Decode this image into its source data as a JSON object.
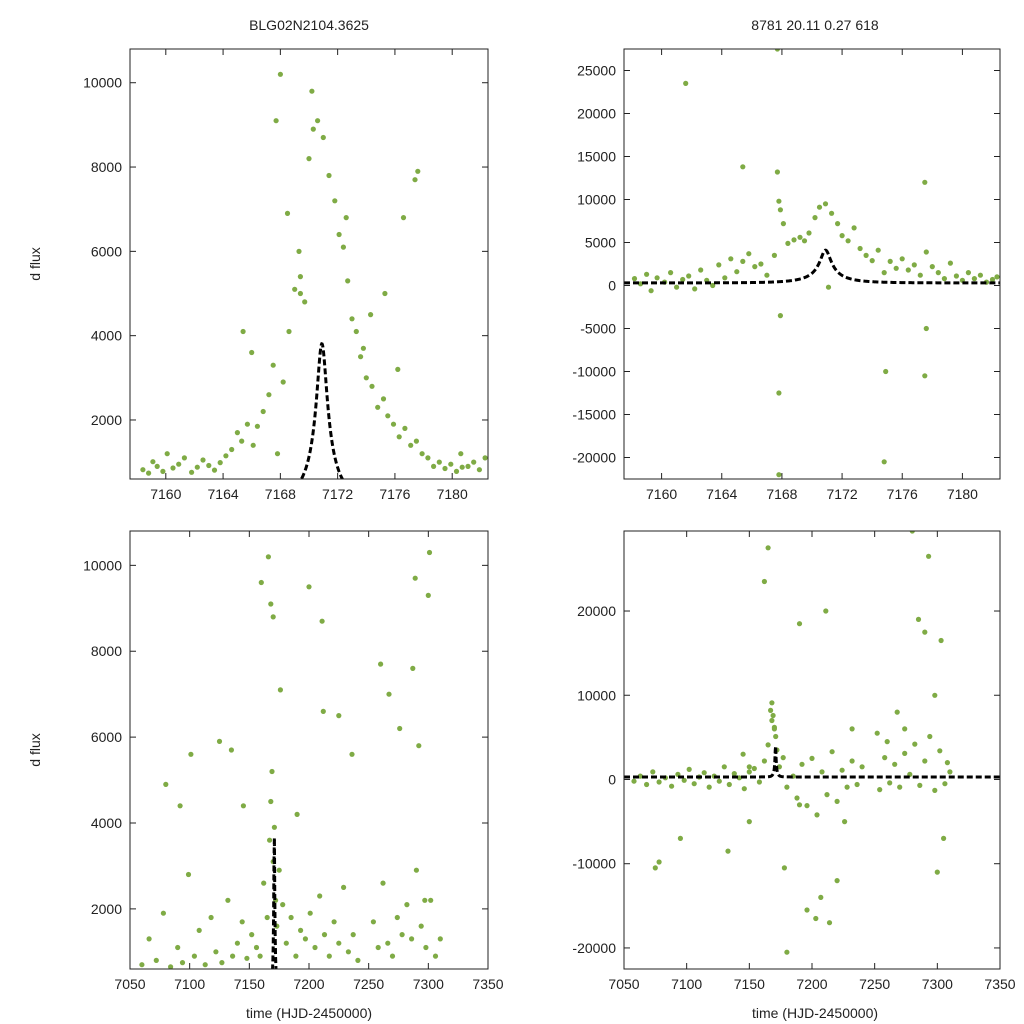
{
  "figure": {
    "title_left": "BLG02N2104.3625",
    "title_right": "8781  20.11  0.27  618",
    "ylabel": "d flux",
    "xlabel": "time (HJD-2450000)"
  },
  "colors": {
    "points": "#7fab45",
    "model": "#000000",
    "axes": "#222222",
    "background": "#ffffff"
  },
  "chart_data": [
    {
      "id": "top-left",
      "type": "scatter",
      "title": "BLG02N2104.3625",
      "xlabel": "",
      "ylabel": "d flux",
      "xlim": [
        7157.5,
        7182.5
      ],
      "ylim": [
        600,
        10800
      ],
      "xticks": [
        7160,
        7164,
        7168,
        7172,
        7176,
        7180
      ],
      "yticks": [
        2000,
        4000,
        6000,
        8000,
        10000
      ],
      "model": {
        "t0": 7170.9,
        "tE": 2.55,
        "u0": 0.145,
        "fs": 640,
        "fb": 0
      },
      "series": [
        {
          "name": "observations",
          "x": [
            7158.4,
            7158.8,
            7159.1,
            7159.4,
            7159.8,
            7160.1,
            7160.5,
            7160.9,
            7161.3,
            7161.8,
            7162.2,
            7162.6,
            7163.0,
            7163.4,
            7163.8,
            7164.2,
            7164.6,
            7165.0,
            7165.3,
            7165.7,
            7166.1,
            7166.4,
            7166.8,
            7167.2,
            7167.5,
            7167.8,
            7168.2,
            7168.6,
            7169.0,
            7169.4,
            7169.7,
            7170.0,
            7170.3,
            7170.6,
            7171.0,
            7171.4,
            7171.8,
            7172.1,
            7172.4,
            7172.7,
            7173.0,
            7173.3,
            7173.6,
            7174.0,
            7174.4,
            7174.8,
            7175.2,
            7175.5,
            7175.9,
            7176.3,
            7176.7,
            7177.1,
            7177.5,
            7177.9,
            7178.3,
            7178.7,
            7179.1,
            7179.5,
            7179.9,
            7180.3,
            7180.7,
            7181.1,
            7181.5,
            7181.9,
            7182.3,
            7167.7,
            7168.0,
            7169.3,
            7169.4,
            7170.2,
            7172.6,
            7174.3,
            7175.3,
            7176.6,
            7177.4,
            7177.6,
            7165.4,
            7166.0,
            7168.5,
            7173.8,
            7176.2,
            7180.6
          ],
          "y": [
            820,
            740,
            1010,
            900,
            780,
            1200,
            860,
            950,
            1100,
            760,
            880,
            1050,
            920,
            810,
            990,
            1150,
            1300,
            1700,
            1500,
            1900,
            1400,
            1850,
            2200,
            2600,
            3300,
            1200,
            2900,
            4100,
            5100,
            5400,
            4800,
            8200,
            8900,
            9100,
            8700,
            7800,
            7200,
            6400,
            6100,
            5300,
            4400,
            4100,
            3500,
            3000,
            2800,
            2300,
            2500,
            2100,
            1900,
            1600,
            1800,
            1400,
            1500,
            1200,
            1100,
            900,
            1000,
            850,
            950,
            780,
            880,
            900,
            1000,
            820,
            1100,
            9100,
            10200,
            6000,
            5000,
            9800,
            6800,
            4500,
            5000,
            6800,
            7700,
            7900,
            4100,
            3600,
            6900,
            3700,
            3200,
            1200
          ]
        }
      ]
    },
    {
      "id": "top-right",
      "type": "scatter",
      "title": "8781  20.11  0.27  618",
      "xlabel": "",
      "ylabel": "",
      "xlim": [
        7157.5,
        7182.5
      ],
      "ylim": [
        -22500,
        27500
      ],
      "xticks": [
        7160,
        7164,
        7168,
        7172,
        7176,
        7180
      ],
      "yticks": [
        -20000,
        -15000,
        -10000,
        -5000,
        0,
        5000,
        10000,
        15000,
        20000,
        25000
      ],
      "model": {
        "t0": 7170.9,
        "tE": 2.55,
        "u0": 0.145,
        "fs": 640,
        "fb": 300
      },
      "series": [
        {
          "name": "observations",
          "x": [
            7158.2,
            7158.6,
            7159.0,
            7159.3,
            7159.7,
            7160.2,
            7160.6,
            7161.0,
            7161.4,
            7161.8,
            7162.2,
            7162.6,
            7163.0,
            7163.4,
            7163.8,
            7164.2,
            7164.6,
            7165.0,
            7165.4,
            7165.8,
            7166.2,
            7166.6,
            7167.0,
            7167.5,
            7167.8,
            7168.1,
            7168.4,
            7168.8,
            7169.2,
            7169.5,
            7169.8,
            7170.2,
            7170.5,
            7170.9,
            7171.3,
            7171.7,
            7172.0,
            7172.4,
            7172.8,
            7173.2,
            7173.6,
            7174.0,
            7174.4,
            7174.8,
            7175.2,
            7175.6,
            7176.0,
            7176.4,
            7176.8,
            7177.2,
            7177.6,
            7178.0,
            7178.4,
            7178.8,
            7179.2,
            7179.6,
            7180.0,
            7180.4,
            7180.8,
            7181.2,
            7181.6,
            7182.0,
            7182.3,
            7161.6,
            7165.4,
            7167.7,
            7167.8,
            7167.9,
            7167.7,
            7167.8,
            7174.9,
            7174.8,
            7177.5,
            7177.5,
            7177.6,
            7171.1,
            7167.9
          ],
          "y": [
            800,
            200,
            1300,
            -600,
            900,
            400,
            1500,
            -200,
            700,
            1100,
            -400,
            1800,
            600,
            0,
            2400,
            900,
            3100,
            1600,
            2800,
            3700,
            2200,
            2500,
            1200,
            3500,
            9800,
            7200,
            4900,
            5300,
            5600,
            5200,
            6100,
            7900,
            9100,
            9500,
            8400,
            7200,
            5800,
            5200,
            6700,
            4300,
            3500,
            2900,
            4100,
            1500,
            2800,
            2000,
            3100,
            1800,
            2400,
            1200,
            3900,
            2200,
            1500,
            800,
            2600,
            1100,
            600,
            1500,
            800,
            1200,
            400,
            700,
            1000,
            23500,
            13800,
            13200,
            -12500,
            -3500,
            27500,
            -22000,
            -10000,
            -20500,
            -10500,
            12000,
            -5000,
            -200,
            8800
          ]
        }
      ]
    },
    {
      "id": "bottom-left",
      "type": "scatter",
      "title": "",
      "xlabel": "time (HJD-2450000)",
      "ylabel": "d flux",
      "xlim": [
        7050,
        7350
      ],
      "ylim": [
        600,
        10800
      ],
      "xticks": [
        7050,
        7100,
        7150,
        7200,
        7250,
        7300,
        7350
      ],
      "yticks": [
        2000,
        4000,
        6000,
        8000,
        10000
      ],
      "model": {
        "t0": 7170.9,
        "tE": 2.55,
        "u0": 0.145,
        "fs": 640,
        "fb": 0
      },
      "series": [
        {
          "name": "observations",
          "x": [
            7060,
            7066,
            7072,
            7078,
            7084,
            7090,
            7094,
            7099,
            7104,
            7108,
            7113,
            7118,
            7122,
            7127,
            7132,
            7136,
            7140,
            7144,
            7148,
            7152,
            7156,
            7159,
            7162,
            7165,
            7167,
            7168,
            7169,
            7170,
            7171,
            7172,
            7173,
            7175,
            7178,
            7181,
            7185,
            7189,
            7193,
            7197,
            7201,
            7205,
            7209,
            7213,
            7217,
            7221,
            7225,
            7229,
            7233,
            7237,
            7241,
            7254,
            7258,
            7262,
            7266,
            7270,
            7274,
            7278,
            7282,
            7286,
            7290,
            7294,
            7298,
            7302,
            7306,
            7310,
            7080,
            7092,
            7101,
            7125,
            7135,
            7145,
            7168,
            7170,
            7176,
            7190,
            7200,
            7211,
            7225,
            7236,
            7260,
            7267,
            7276,
            7287,
            7289,
            7292,
            7297,
            7301,
            7166,
            7212,
            7160,
            7300
          ],
          "y": [
            700,
            1300,
            800,
            1900,
            650,
            1100,
            750,
            2800,
            900,
            1500,
            700,
            1800,
            1000,
            750,
            2200,
            900,
            1200,
            1700,
            850,
            1400,
            1100,
            900,
            2600,
            1800,
            3600,
            4500,
            5200,
            3100,
            3900,
            2200,
            1600,
            2900,
            2100,
            1200,
            1800,
            900,
            1500,
            1300,
            1900,
            1100,
            2300,
            1400,
            900,
            1700,
            1200,
            2500,
            1000,
            1400,
            800,
            1700,
            1100,
            2600,
            1200,
            900,
            1800,
            1400,
            2100,
            1300,
            2900,
            1600,
            1100,
            2200,
            900,
            1300,
            4900,
            4400,
            5600,
            5900,
            5700,
            4400,
            9100,
            8800,
            7100,
            4200,
            9500,
            8700,
            6500,
            5600,
            7700,
            7000,
            6200,
            7600,
            9700,
            5800,
            2200,
            10300,
            10200,
            6600,
            9600,
            9300
          ]
        }
      ]
    },
    {
      "id": "bottom-right",
      "type": "scatter",
      "title": "",
      "xlabel": "time (HJD-2450000)",
      "ylabel": "",
      "xlim": [
        7050,
        7350
      ],
      "ylim": [
        -22500,
        29500
      ],
      "xticks": [
        7050,
        7100,
        7150,
        7200,
        7250,
        7300,
        7350
      ],
      "yticks": [
        -20000,
        -10000,
        0,
        10000,
        20000
      ],
      "model": {
        "t0": 7170.9,
        "tE": 2.55,
        "u0": 0.145,
        "fs": 640,
        "fb": 300
      },
      "series": [
        {
          "name": "observations",
          "x": [
            7058,
            7063,
            7068,
            7073,
            7078,
            7083,
            7088,
            7093,
            7098,
            7102,
            7106,
            7110,
            7114,
            7118,
            7122,
            7126,
            7130,
            7134,
            7138,
            7142,
            7146,
            7150,
            7154,
            7158,
            7162,
            7165,
            7167,
            7168,
            7169,
            7170,
            7171,
            7172,
            7174,
            7177,
            7180,
            7185,
            7188,
            7192,
            7196,
            7200,
            7204,
            7208,
            7212,
            7216,
            7220,
            7224,
            7228,
            7232,
            7236,
            7240,
            7254,
            7258,
            7262,
            7266,
            7270,
            7274,
            7278,
            7282,
            7286,
            7290,
            7294,
            7298,
            7302,
            7306,
            7310,
            7075,
            7078,
            7095,
            7133,
            7145,
            7150,
            7162,
            7165,
            7168,
            7170,
            7178,
            7180,
            7190,
            7196,
            7203,
            7207,
            7211,
            7214,
            7220,
            7226,
            7232,
            7252,
            7260,
            7268,
            7274,
            7280,
            7285,
            7290,
            7293,
            7298,
            7300,
            7303,
            7305,
            7308,
            7150,
            7190
          ],
          "y": [
            -200,
            400,
            -600,
            900,
            -300,
            200,
            -800,
            600,
            -100,
            1200,
            -500,
            300,
            800,
            -900,
            400,
            -200,
            1500,
            -600,
            700,
            200,
            -1100,
            900,
            1300,
            -300,
            2200,
            4100,
            8200,
            9100,
            7600,
            6200,
            5100,
            3500,
            1500,
            2600,
            -900,
            400,
            -2200,
            1800,
            -3100,
            2500,
            -4200,
            900,
            -1800,
            3300,
            -2600,
            1100,
            -900,
            2200,
            -600,
            1500,
            -1200,
            2600,
            -400,
            1800,
            -900,
            3100,
            600,
            4200,
            -700,
            2200,
            5100,
            -1300,
            3400,
            -500,
            900,
            -10500,
            -9800,
            -7000,
            -8500,
            3000,
            1500,
            23500,
            27500,
            7000,
            6000,
            -10500,
            -20500,
            18500,
            -15500,
            -16500,
            -14000,
            20000,
            -17000,
            -12000,
            -5000,
            6000,
            5500,
            4500,
            8000,
            6000,
            29500,
            19000,
            17500,
            26500,
            10000,
            -11000,
            16500,
            -7000,
            2000,
            -5000,
            -3000
          ]
        }
      ]
    }
  ]
}
